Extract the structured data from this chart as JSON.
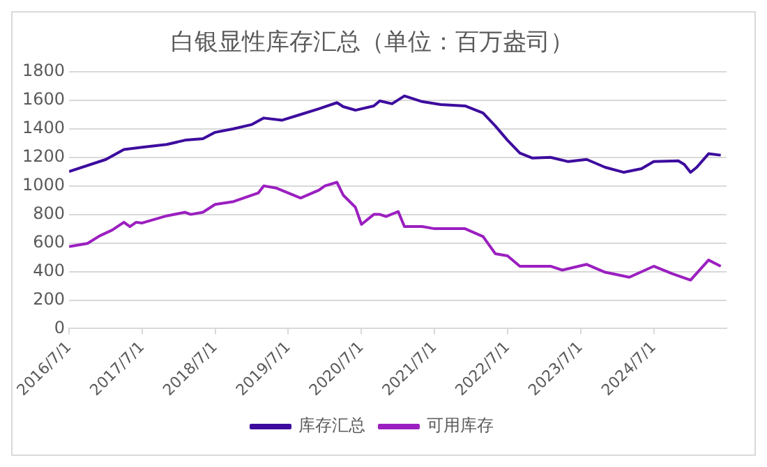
{
  "chart_data": {
    "type": "line",
    "title": "白银显性库存汇总（单位：百万盎司）",
    "xlim": [
      "2016-07-01",
      "2025-06-30"
    ],
    "xticks": [
      {
        "value": "2016-07-01",
        "label": "2016/7/1"
      },
      {
        "value": "2017-07-01",
        "label": "2017/7/1"
      },
      {
        "value": "2018-07-01",
        "label": "2018/7/1"
      },
      {
        "value": "2019-07-01",
        "label": "2019/7/1"
      },
      {
        "value": "2020-07-01",
        "label": "2020/7/1"
      },
      {
        "value": "2021-07-01",
        "label": "2021/7/1"
      },
      {
        "value": "2022-07-01",
        "label": "2022/7/1"
      },
      {
        "value": "2023-07-01",
        "label": "2023/7/1"
      },
      {
        "value": "2024-07-01",
        "label": "2024/7/1"
      }
    ],
    "ylim": [
      0,
      1800
    ],
    "yticks": [
      0,
      200,
      400,
      600,
      800,
      1000,
      1200,
      1400,
      1600,
      1800
    ],
    "grid": "y",
    "legend": "bottom",
    "marker": "none",
    "line_style": "solid",
    "series": [
      {
        "name": "库存汇总",
        "color": "#3d0c9e",
        "x": [
          "2016-07",
          "2017-01",
          "2017-04",
          "2017-07",
          "2017-11",
          "2018-02",
          "2018-05",
          "2018-07",
          "2018-10",
          "2019-01",
          "2019-03",
          "2019-06",
          "2019-09",
          "2019-12",
          "2020-03",
          "2020-04",
          "2020-06",
          "2020-09",
          "2020-10",
          "2020-12",
          "2021-02",
          "2021-05",
          "2021-08",
          "2021-12",
          "2022-03",
          "2022-05",
          "2022-07",
          "2022-09",
          "2022-11",
          "2023-02",
          "2023-05",
          "2023-08",
          "2023-11",
          "2024-02",
          "2024-05",
          "2024-07",
          "2024-11",
          "2024-12",
          "2025-01",
          "2025-02",
          "2025-04",
          "2025-06"
        ],
        "values": [
          1100,
          1185,
          1255,
          1270,
          1290,
          1320,
          1330,
          1375,
          1400,
          1430,
          1475,
          1460,
          1500,
          1540,
          1583,
          1555,
          1530,
          1560,
          1595,
          1575,
          1630,
          1590,
          1570,
          1560,
          1510,
          1420,
          1320,
          1230,
          1195,
          1200,
          1170,
          1185,
          1130,
          1095,
          1120,
          1170,
          1175,
          1150,
          1095,
          1130,
          1225,
          1215
        ]
      },
      {
        "name": "可用库存",
        "color": "#9b1fc0",
        "x": [
          "2016-07",
          "2016-10",
          "2016-12",
          "2017-02",
          "2017-04",
          "2017-05",
          "2017-06",
          "2017-07",
          "2017-11",
          "2018-02",
          "2018-03",
          "2018-05",
          "2018-07",
          "2018-10",
          "2019-02",
          "2019-03",
          "2019-05",
          "2019-09",
          "2019-12",
          "2020-01",
          "2020-03",
          "2020-04",
          "2020-06",
          "2020-07",
          "2020-09",
          "2020-10",
          "2020-11",
          "2021-01",
          "2021-02",
          "2021-05",
          "2021-07",
          "2021-12",
          "2022-03",
          "2022-05",
          "2022-07",
          "2022-09",
          "2023-02",
          "2023-04",
          "2023-08",
          "2023-11",
          "2024-03",
          "2024-07",
          "2024-10",
          "2025-01",
          "2025-04",
          "2025-06"
        ],
        "values": [
          575,
          597,
          650,
          690,
          745,
          715,
          745,
          740,
          790,
          815,
          800,
          815,
          870,
          890,
          950,
          1000,
          985,
          915,
          970,
          1000,
          1025,
          935,
          850,
          730,
          800,
          800,
          785,
          820,
          715,
          715,
          700,
          700,
          645,
          525,
          510,
          437,
          437,
          410,
          450,
          395,
          360,
          437,
          385,
          340,
          480,
          437
        ]
      }
    ]
  }
}
